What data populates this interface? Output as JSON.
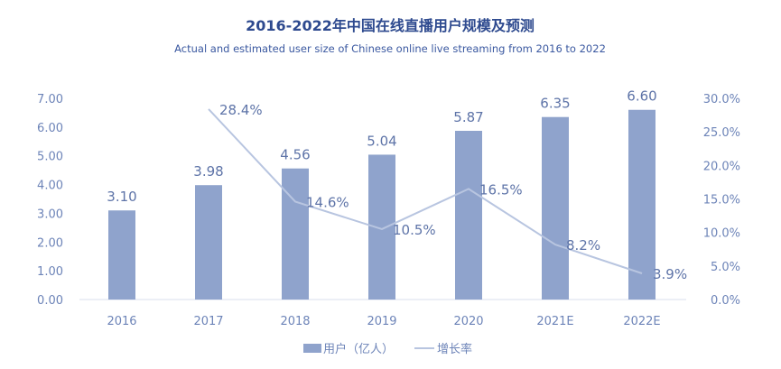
{
  "chart_data": {
    "type": "bar+line",
    "title": "2016-2022年中国在线直播用户规模及预测",
    "subtitle": "Actual and estimated user size of Chinese online live streaming from 2016 to 2022",
    "categories": [
      "2016",
      "2017",
      "2018",
      "2019",
      "2020",
      "2021E",
      "2022E"
    ],
    "series": [
      {
        "name": "用户（亿人）",
        "type": "bar",
        "axis": "left",
        "values": [
          3.1,
          3.98,
          4.56,
          5.04,
          5.87,
          6.35,
          6.6
        ],
        "labels": [
          "3.10",
          "3.98",
          "4.56",
          "5.04",
          "5.87",
          "6.35",
          "6.60"
        ]
      },
      {
        "name": "增长率",
        "type": "line",
        "axis": "right",
        "values": [
          null,
          28.4,
          14.6,
          10.5,
          16.5,
          8.2,
          3.9
        ],
        "labels": [
          "",
          "28.4%",
          "14.6%",
          "10.5%",
          "16.5%",
          "8.2%",
          "3.9%"
        ]
      }
    ],
    "left_axis": {
      "range": [
        0,
        7
      ],
      "ticks": [
        "0.00",
        "1.00",
        "2.00",
        "3.00",
        "4.00",
        "5.00",
        "6.00",
        "7.00"
      ]
    },
    "right_axis": {
      "range": [
        0,
        30
      ],
      "ticks": [
        "0.0%",
        "5.0%",
        "10.0%",
        "15.0%",
        "20.0%",
        "25.0%",
        "30.0%"
      ]
    },
    "grid": false,
    "legend": "bottom",
    "colors": {
      "bar": "#8fa3cc",
      "line": "#b8c5e0",
      "title": "#2e4a8f",
      "text": "#6d84b8"
    }
  }
}
